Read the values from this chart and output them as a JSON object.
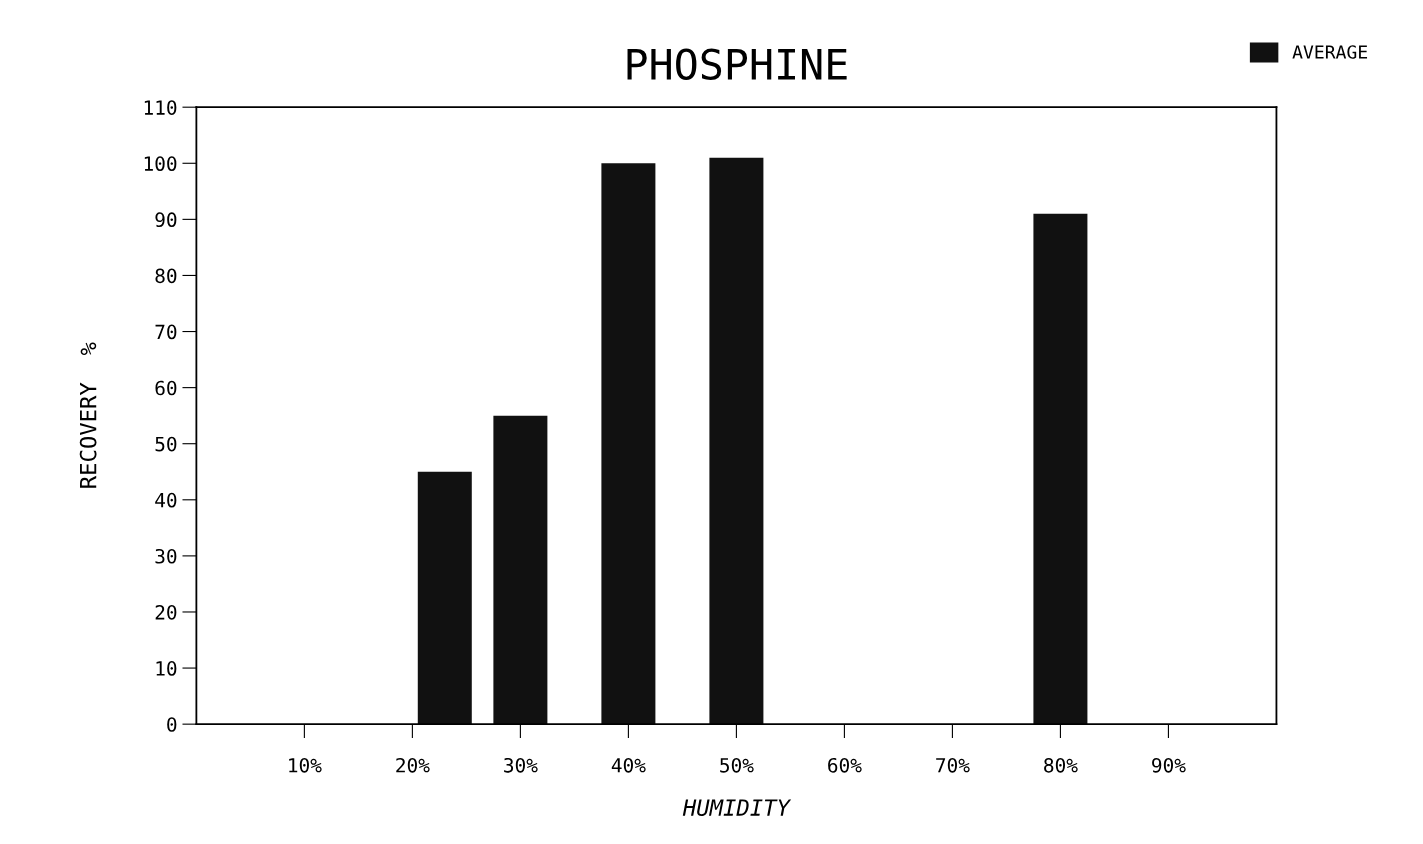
{
  "chart_data": {
    "type": "bar",
    "title": "PHOSPHINE",
    "xlabel": "HUMIDITY",
    "ylabel": "RECOVERY  %",
    "x": [
      23,
      30,
      40,
      50,
      80
    ],
    "series": [
      {
        "name": "AVERAGE",
        "color": "#111111",
        "values": [
          45,
          55,
          100,
          101,
          91
        ]
      }
    ],
    "xlim": [
      0,
      100
    ],
    "xticks": [
      {
        "value": 10,
        "label": "10%"
      },
      {
        "value": 20,
        "label": "20%"
      },
      {
        "value": 30,
        "label": "30%"
      },
      {
        "value": 40,
        "label": "40%"
      },
      {
        "value": 50,
        "label": "50%"
      },
      {
        "value": 60,
        "label": "60%"
      },
      {
        "value": 70,
        "label": "70%"
      },
      {
        "value": 80,
        "label": "80%"
      },
      {
        "value": 90,
        "label": "90%"
      }
    ],
    "ylim": [
      0,
      110
    ],
    "yticks": [
      0,
      10,
      20,
      30,
      40,
      50,
      60,
      70,
      80,
      90,
      100,
      110
    ],
    "legend": "top right",
    "grid": false
  }
}
